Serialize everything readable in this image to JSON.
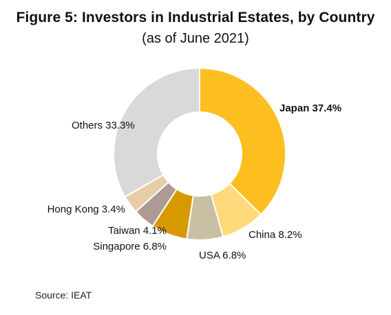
{
  "header": {
    "title": "Figure 5: Investors in Industrial Estates, by Country",
    "subtitle": "(as of June 2021)"
  },
  "footer": {
    "source": "Source: IEAT"
  },
  "chart_data": {
    "type": "pie",
    "donut": true,
    "categories": [
      "Japan",
      "China",
      "USA",
      "Singapore",
      "Taiwan",
      "Hong Kong",
      "Others"
    ],
    "values": [
      37.4,
      8.2,
      6.8,
      6.8,
      4.1,
      3.4,
      33.3
    ],
    "labels": [
      "Japan 37.4%",
      "China 8.2%",
      "USA 6.8%",
      "Singapore 6.8%",
      "Taiwan 4.1%",
      "Hong Kong 3.4%",
      "Others 33.3%"
    ],
    "colors": [
      "#FDBF1F",
      "#FFD97A",
      "#C9BFA3",
      "#D69A00",
      "#AD9A94",
      "#E6CDA5",
      "#D9D9D9"
    ],
    "bold_labels": [
      "Japan 37.4%"
    ],
    "start_angle": "12 o'clock",
    "direction": "clockwise",
    "title": "Figure 5: Investors in Industrial Estates, by Country",
    "subtitle": "(as of June 2021)"
  }
}
